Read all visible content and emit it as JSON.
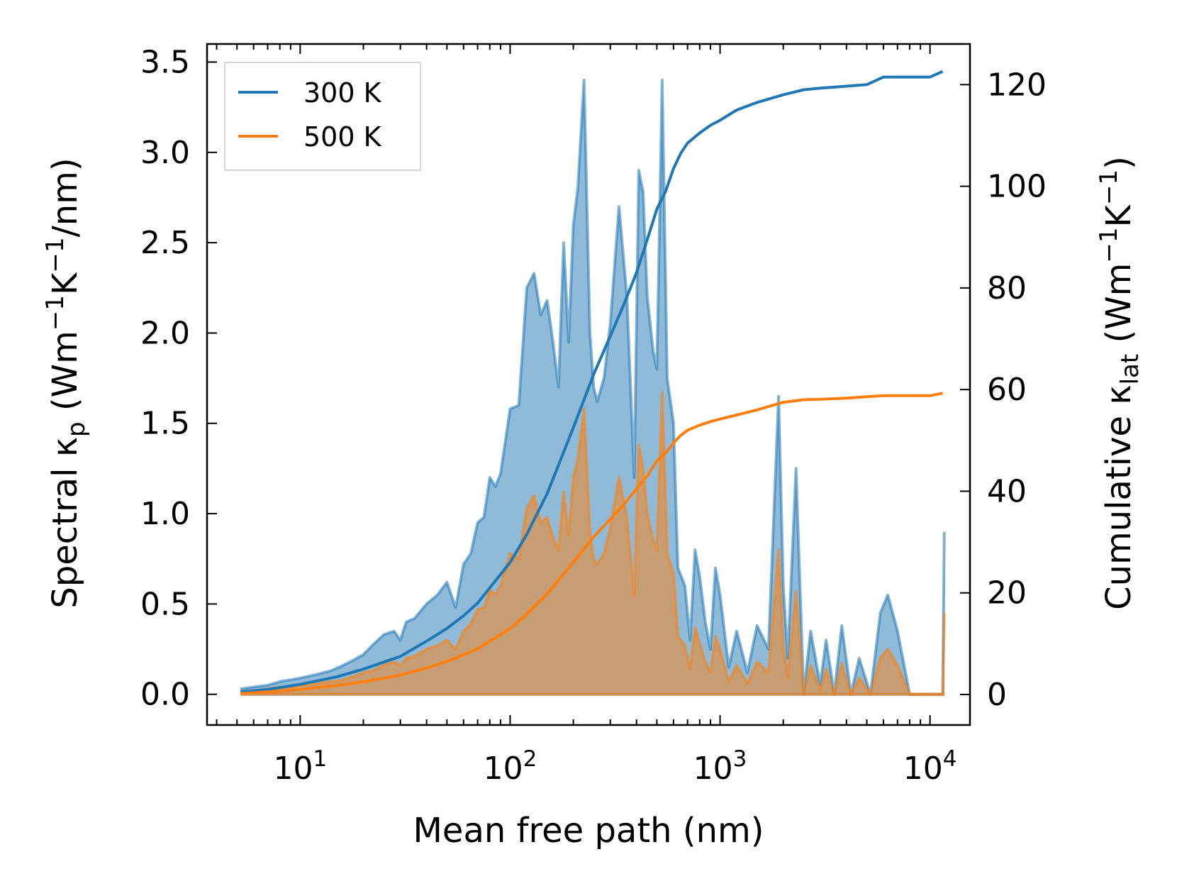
{
  "chart_data": {
    "type": "area+line (dual y-axis)",
    "xlabel": "Mean free path (nm)",
    "x_scale": "log",
    "xlim": [
      3.6,
      15500
    ],
    "x_ticks": [
      {
        "value": 10,
        "base": "10",
        "exp": "1"
      },
      {
        "value": 100,
        "base": "10",
        "exp": "2"
      },
      {
        "value": 1000,
        "base": "10",
        "exp": "3"
      },
      {
        "value": 10000,
        "base": "10",
        "exp": "4"
      }
    ],
    "y_left": {
      "label_prefix": "Spectral κ",
      "label_sub": "p",
      "label_unit_open": " (Wm",
      "label_sup1": "−1",
      "label_mid": "K",
      "label_sup2": "−1",
      "label_unit_close": "/nm)",
      "ylim": [
        -0.17,
        3.6
      ],
      "ticks": [
        "0.0",
        "0.5",
        "1.0",
        "1.5",
        "2.0",
        "2.5",
        "3.0",
        "3.5"
      ]
    },
    "y_right": {
      "label_prefix": "Cumulative κ",
      "label_sub": "lat",
      "label_unit_open": " (Wm",
      "label_sup1": "−1",
      "label_mid": "K",
      "label_sup2": "−1",
      "label_unit_close": ")",
      "ylim": [
        -6,
        128
      ],
      "ticks": [
        "0",
        "20",
        "40",
        "60",
        "80",
        "100",
        "120"
      ]
    },
    "legend": {
      "placement": "top-left",
      "entries": [
        {
          "label": "300 K",
          "color": "#1f77b4"
        },
        {
          "label": "500 K",
          "color": "#ff7f0e"
        }
      ]
    },
    "series": [
      {
        "name": "300 K",
        "color": "#1f77b4",
        "spectral": {
          "x": [
            5.2,
            6,
            7,
            8,
            9,
            10,
            12,
            14,
            16,
            18,
            20,
            22,
            25,
            28,
            30,
            32,
            35,
            40,
            45,
            50,
            55,
            60,
            65,
            70,
            75,
            80,
            85,
            90,
            100,
            110,
            120,
            130,
            140,
            150,
            160,
            170,
            180,
            190,
            200,
            210,
            225,
            240,
            250,
            260,
            280,
            300,
            330,
            360,
            390,
            410,
            430,
            450,
            480,
            500,
            530,
            560,
            600,
            630,
            680,
            720,
            760,
            800,
            850,
            900,
            950,
            1000,
            1100,
            1200,
            1350,
            1500,
            1700,
            1900,
            2000,
            2100,
            2300,
            2500,
            2700,
            3000,
            3200,
            3500,
            3800,
            4200,
            4600,
            5200,
            5800,
            6300,
            7000,
            8000,
            9000,
            10000,
            11000,
            11500,
            11700
          ],
          "y": [
            0.03,
            0.04,
            0.05,
            0.07,
            0.08,
            0.09,
            0.11,
            0.13,
            0.16,
            0.19,
            0.22,
            0.27,
            0.33,
            0.35,
            0.3,
            0.4,
            0.42,
            0.5,
            0.55,
            0.62,
            0.48,
            0.72,
            0.78,
            0.95,
            0.98,
            1.2,
            1.15,
            1.22,
            1.58,
            1.6,
            2.25,
            2.33,
            2.1,
            2.18,
            1.95,
            1.7,
            2.5,
            1.95,
            2.6,
            2.8,
            3.4,
            2.0,
            1.7,
            1.62,
            1.75,
            2.05,
            2.7,
            2.2,
            1.2,
            2.9,
            2.78,
            2.2,
            1.9,
            1.8,
            3.4,
            1.75,
            1.5,
            0.7,
            0.6,
            0.3,
            0.8,
            0.65,
            0.4,
            0.25,
            0.7,
            0.55,
            0.15,
            0.35,
            0.12,
            0.38,
            0.25,
            1.65,
            0.6,
            0.2,
            1.25,
            0.0,
            0.35,
            0.05,
            0.3,
            0.0,
            0.38,
            0.0,
            0.2,
            0.0,
            0.45,
            0.55,
            0.35,
            0.0,
            0.0,
            0.0,
            0.0,
            0.0,
            0.9
          ]
        },
        "cumulative": {
          "x": [
            5.2,
            7,
            10,
            15,
            20,
            30,
            40,
            50,
            60,
            70,
            80,
            100,
            120,
            150,
            200,
            250,
            300,
            350,
            400,
            450,
            500,
            550,
            600,
            650,
            700,
            800,
            900,
            1000,
            1200,
            1500,
            2000,
            2500,
            3000,
            4000,
            5000,
            6000,
            8000,
            10000,
            11500
          ],
          "y": [
            0.5,
            1.0,
            2.0,
            3.5,
            5.0,
            7.5,
            10.5,
            13.0,
            15.5,
            18.0,
            21.0,
            26.0,
            31.5,
            39.5,
            52.5,
            63.0,
            70.5,
            77.0,
            83.0,
            89.5,
            95.5,
            99.0,
            103.5,
            106.5,
            108.5,
            110.5,
            112.0,
            113.0,
            115.0,
            116.5,
            118.0,
            119.0,
            119.3,
            119.7,
            120.0,
            121.5,
            121.5,
            121.5,
            122.6
          ]
        }
      },
      {
        "name": "500 K",
        "color": "#ff7f0e",
        "spectral": {
          "x": [
            5.2,
            6,
            7,
            8,
            9,
            10,
            12,
            14,
            16,
            18,
            20,
            22,
            25,
            28,
            30,
            32,
            35,
            40,
            45,
            50,
            55,
            60,
            65,
            70,
            75,
            80,
            85,
            90,
            100,
            110,
            120,
            130,
            140,
            150,
            160,
            170,
            180,
            190,
            200,
            210,
            225,
            240,
            250,
            260,
            280,
            300,
            330,
            360,
            390,
            410,
            430,
            450,
            480,
            500,
            530,
            560,
            600,
            630,
            680,
            720,
            760,
            800,
            850,
            900,
            950,
            1000,
            1100,
            1200,
            1350,
            1500,
            1700,
            1900,
            2000,
            2100,
            2300,
            2500,
            2700,
            3000,
            3200,
            3500,
            3800,
            4200,
            4600,
            5200,
            5800,
            6300,
            7000,
            8000,
            9000,
            10000,
            11000,
            11500,
            11700
          ],
          "y": [
            0.01,
            0.02,
            0.03,
            0.04,
            0.04,
            0.05,
            0.06,
            0.07,
            0.08,
            0.1,
            0.12,
            0.13,
            0.16,
            0.18,
            0.16,
            0.2,
            0.21,
            0.25,
            0.27,
            0.3,
            0.25,
            0.35,
            0.39,
            0.47,
            0.48,
            0.58,
            0.55,
            0.6,
            0.78,
            0.75,
            1.03,
            1.1,
            0.95,
            0.98,
            0.87,
            0.8,
            1.12,
            0.88,
            1.2,
            1.3,
            1.58,
            0.9,
            0.75,
            0.72,
            0.78,
            0.92,
            1.2,
            0.98,
            0.55,
            1.38,
            1.25,
            1.0,
            0.85,
            0.8,
            1.67,
            0.78,
            0.67,
            0.32,
            0.27,
            0.14,
            0.37,
            0.28,
            0.18,
            0.12,
            0.32,
            0.25,
            0.07,
            0.16,
            0.06,
            0.18,
            0.12,
            0.8,
            0.27,
            0.09,
            0.57,
            0.0,
            0.16,
            0.02,
            0.14,
            0.0,
            0.17,
            0.0,
            0.09,
            0.0,
            0.2,
            0.25,
            0.16,
            0.0,
            0.0,
            0.0,
            0.0,
            0.0,
            0.45
          ]
        },
        "cumulative": {
          "x": [
            5.2,
            7,
            10,
            15,
            20,
            30,
            40,
            50,
            60,
            70,
            80,
            100,
            120,
            150,
            200,
            250,
            300,
            350,
            400,
            450,
            500,
            550,
            600,
            650,
            700,
            800,
            900,
            1000,
            1200,
            1500,
            2000,
            2500,
            3000,
            4000,
            5000,
            6000,
            8000,
            10000,
            11500
          ],
          "y": [
            0.2,
            0.5,
            1.0,
            1.8,
            2.5,
            3.8,
            5.2,
            6.5,
            7.8,
            9.0,
            10.5,
            13.0,
            15.8,
            19.8,
            26.0,
            31.0,
            34.5,
            37.5,
            40.5,
            43.0,
            46.0,
            47.5,
            49.5,
            51.0,
            52.0,
            53.0,
            53.7,
            54.2,
            55.0,
            56.0,
            57.5,
            58.0,
            58.1,
            58.3,
            58.6,
            58.8,
            58.8,
            58.8,
            59.3
          ]
        }
      }
    ]
  }
}
